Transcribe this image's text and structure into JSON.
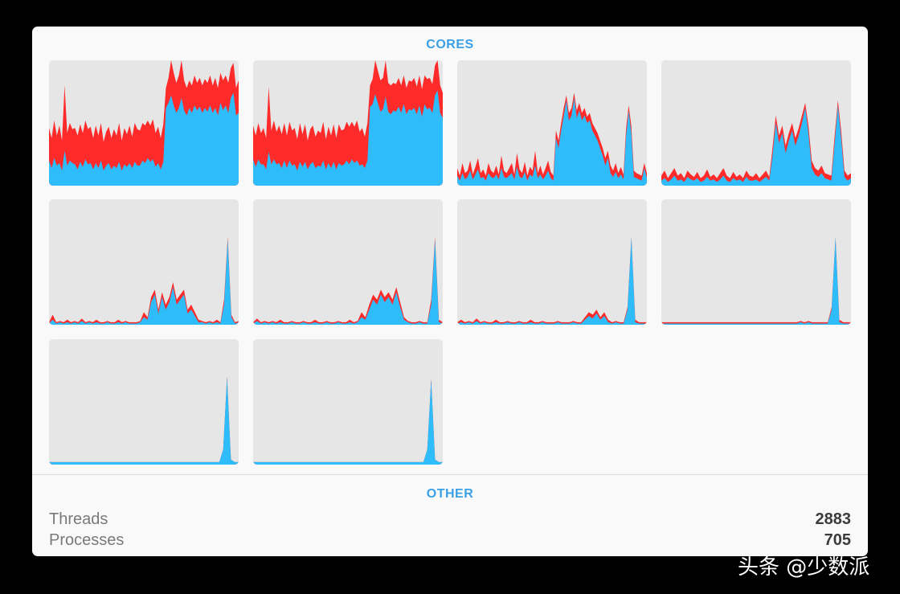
{
  "cores": {
    "title": "CORES",
    "colors": {
      "system": "#ff2a2a",
      "user": "#2ebcfb",
      "background": "#e6e6e6"
    },
    "graphs": [
      {
        "name": "core-1",
        "total": [
          0.46,
          0.38,
          0.52,
          0.4,
          0.48,
          0.36,
          0.8,
          0.42,
          0.5,
          0.45,
          0.46,
          0.4,
          0.49,
          0.42,
          0.52,
          0.45,
          0.47,
          0.38,
          0.48,
          0.4,
          0.5,
          0.35,
          0.43,
          0.47,
          0.38,
          0.45,
          0.4,
          0.5,
          0.36,
          0.46,
          0.41,
          0.48,
          0.39,
          0.5,
          0.45,
          0.44,
          0.5,
          0.48,
          0.52,
          0.48,
          0.53,
          0.42,
          0.47,
          0.38,
          0.49,
          0.78,
          0.86,
          1.0,
          0.9,
          0.82,
          0.88,
          1.0,
          0.84,
          0.78,
          0.84,
          0.8,
          0.88,
          0.82,
          0.86,
          0.8,
          0.85,
          0.82,
          0.88,
          0.8,
          0.86,
          0.78,
          0.9,
          0.84,
          0.88,
          0.82,
          0.94,
          0.98,
          0.78,
          0.84
        ],
        "user": [
          0.2,
          0.14,
          0.22,
          0.16,
          0.18,
          0.12,
          0.28,
          0.16,
          0.2,
          0.18,
          0.17,
          0.13,
          0.19,
          0.15,
          0.21,
          0.17,
          0.18,
          0.13,
          0.18,
          0.14,
          0.2,
          0.12,
          0.16,
          0.18,
          0.13,
          0.16,
          0.14,
          0.19,
          0.12,
          0.17,
          0.15,
          0.18,
          0.14,
          0.19,
          0.16,
          0.16,
          0.2,
          0.18,
          0.22,
          0.19,
          0.21,
          0.15,
          0.18,
          0.13,
          0.19,
          0.62,
          0.66,
          0.72,
          0.64,
          0.58,
          0.62,
          0.7,
          0.6,
          0.56,
          0.62,
          0.58,
          0.64,
          0.6,
          0.63,
          0.58,
          0.62,
          0.59,
          0.64,
          0.58,
          0.62,
          0.56,
          0.66,
          0.6,
          0.64,
          0.58,
          0.7,
          0.74,
          0.56,
          0.58
        ]
      },
      {
        "name": "core-2",
        "total": [
          0.48,
          0.4,
          0.5,
          0.42,
          0.46,
          0.38,
          0.79,
          0.44,
          0.52,
          0.43,
          0.48,
          0.41,
          0.5,
          0.4,
          0.51,
          0.44,
          0.46,
          0.37,
          0.5,
          0.41,
          0.49,
          0.36,
          0.45,
          0.48,
          0.39,
          0.44,
          0.42,
          0.51,
          0.37,
          0.47,
          0.4,
          0.49,
          0.38,
          0.49,
          0.44,
          0.45,
          0.51,
          0.47,
          0.51,
          0.47,
          0.52,
          0.43,
          0.46,
          0.39,
          0.5,
          0.8,
          0.85,
          1.0,
          0.92,
          0.84,
          0.86,
          1.0,
          0.82,
          0.8,
          0.82,
          0.81,
          0.86,
          0.8,
          0.88,
          0.78,
          0.84,
          0.83,
          0.86,
          0.79,
          0.88,
          0.77,
          0.88,
          0.85,
          0.86,
          0.81,
          0.96,
          1.0,
          0.8,
          0.74
        ],
        "user": [
          0.21,
          0.15,
          0.21,
          0.17,
          0.17,
          0.13,
          0.27,
          0.17,
          0.21,
          0.17,
          0.18,
          0.14,
          0.2,
          0.14,
          0.2,
          0.16,
          0.17,
          0.12,
          0.19,
          0.15,
          0.19,
          0.13,
          0.17,
          0.19,
          0.14,
          0.16,
          0.15,
          0.2,
          0.13,
          0.18,
          0.14,
          0.19,
          0.13,
          0.18,
          0.16,
          0.17,
          0.2,
          0.17,
          0.21,
          0.18,
          0.2,
          0.16,
          0.17,
          0.14,
          0.2,
          0.63,
          0.65,
          0.73,
          0.66,
          0.59,
          0.61,
          0.71,
          0.59,
          0.57,
          0.6,
          0.59,
          0.63,
          0.58,
          0.65,
          0.57,
          0.61,
          0.6,
          0.62,
          0.57,
          0.64,
          0.55,
          0.65,
          0.61,
          0.62,
          0.58,
          0.72,
          0.76,
          0.58,
          0.54
        ]
      },
      {
        "name": "core-3",
        "total": [
          0.14,
          0.08,
          0.18,
          0.1,
          0.12,
          0.2,
          0.09,
          0.15,
          0.22,
          0.1,
          0.13,
          0.08,
          0.18,
          0.12,
          0.1,
          0.16,
          0.09,
          0.24,
          0.12,
          0.1,
          0.14,
          0.18,
          0.09,
          0.26,
          0.13,
          0.1,
          0.19,
          0.08,
          0.15,
          0.12,
          0.28,
          0.1,
          0.16,
          0.09,
          0.14,
          0.2,
          0.11,
          0.08,
          0.44,
          0.36,
          0.5,
          0.62,
          0.72,
          0.58,
          0.62,
          0.74,
          0.6,
          0.66,
          0.58,
          0.62,
          0.55,
          0.58,
          0.5,
          0.46,
          0.42,
          0.36,
          0.3,
          0.22,
          0.28,
          0.16,
          0.12,
          0.18,
          0.1,
          0.15,
          0.09,
          0.46,
          0.64,
          0.48,
          0.12,
          0.1,
          0.09,
          0.08,
          0.18,
          0.1
        ],
        "user": [
          0.08,
          0.04,
          0.1,
          0.05,
          0.07,
          0.12,
          0.05,
          0.09,
          0.13,
          0.06,
          0.07,
          0.04,
          0.1,
          0.07,
          0.06,
          0.09,
          0.05,
          0.14,
          0.07,
          0.06,
          0.08,
          0.1,
          0.05,
          0.15,
          0.07,
          0.06,
          0.11,
          0.04,
          0.09,
          0.07,
          0.16,
          0.06,
          0.09,
          0.05,
          0.08,
          0.12,
          0.06,
          0.04,
          0.38,
          0.3,
          0.44,
          0.56,
          0.68,
          0.52,
          0.56,
          0.7,
          0.54,
          0.6,
          0.52,
          0.56,
          0.5,
          0.52,
          0.44,
          0.4,
          0.36,
          0.3,
          0.24,
          0.16,
          0.22,
          0.1,
          0.07,
          0.11,
          0.06,
          0.09,
          0.05,
          0.4,
          0.6,
          0.42,
          0.07,
          0.06,
          0.05,
          0.04,
          0.14,
          0.06
        ]
      },
      {
        "name": "core-4",
        "total": [
          0.08,
          0.12,
          0.06,
          0.1,
          0.14,
          0.08,
          0.1,
          0.06,
          0.12,
          0.09,
          0.07,
          0.11,
          0.06,
          0.08,
          0.13,
          0.07,
          0.09,
          0.06,
          0.1,
          0.14,
          0.08,
          0.06,
          0.11,
          0.07,
          0.09,
          0.06,
          0.12,
          0.08,
          0.07,
          0.1,
          0.06,
          0.09,
          0.12,
          0.07,
          0.3,
          0.56,
          0.4,
          0.48,
          0.32,
          0.42,
          0.5,
          0.38,
          0.46,
          0.56,
          0.66,
          0.48,
          0.2,
          0.14,
          0.12,
          0.16,
          0.1,
          0.09,
          0.08,
          0.4,
          0.68,
          0.44,
          0.12,
          0.08,
          0.1
        ],
        "user": [
          0.04,
          0.06,
          0.03,
          0.05,
          0.08,
          0.04,
          0.05,
          0.03,
          0.07,
          0.05,
          0.04,
          0.06,
          0.03,
          0.04,
          0.07,
          0.04,
          0.05,
          0.03,
          0.05,
          0.08,
          0.04,
          0.03,
          0.06,
          0.04,
          0.05,
          0.03,
          0.07,
          0.04,
          0.04,
          0.05,
          0.03,
          0.05,
          0.07,
          0.04,
          0.24,
          0.5,
          0.34,
          0.42,
          0.26,
          0.36,
          0.44,
          0.32,
          0.4,
          0.5,
          0.62,
          0.42,
          0.14,
          0.09,
          0.07,
          0.1,
          0.06,
          0.05,
          0.04,
          0.34,
          0.64,
          0.38,
          0.07,
          0.04,
          0.06
        ]
      },
      {
        "name": "core-5",
        "total": [
          0.02,
          0.08,
          0.02,
          0.03,
          0.02,
          0.04,
          0.02,
          0.03,
          0.02,
          0.05,
          0.02,
          0.03,
          0.02,
          0.04,
          0.02,
          0.02,
          0.03,
          0.02,
          0.02,
          0.04,
          0.02,
          0.03,
          0.02,
          0.02,
          0.02,
          0.03,
          0.1,
          0.06,
          0.22,
          0.28,
          0.12,
          0.26,
          0.16,
          0.22,
          0.34,
          0.2,
          0.24,
          0.28,
          0.12,
          0.16,
          0.1,
          0.04,
          0.03,
          0.02,
          0.03,
          0.02,
          0.04,
          0.02,
          0.2,
          0.7,
          0.08,
          0.02,
          0.03
        ],
        "user": [
          0.01,
          0.04,
          0.01,
          0.02,
          0.01,
          0.02,
          0.01,
          0.02,
          0.01,
          0.03,
          0.01,
          0.02,
          0.01,
          0.02,
          0.01,
          0.01,
          0.02,
          0.01,
          0.01,
          0.02,
          0.01,
          0.02,
          0.01,
          0.01,
          0.01,
          0.02,
          0.06,
          0.04,
          0.18,
          0.24,
          0.09,
          0.22,
          0.12,
          0.18,
          0.3,
          0.16,
          0.2,
          0.24,
          0.09,
          0.12,
          0.07,
          0.02,
          0.02,
          0.01,
          0.02,
          0.01,
          0.02,
          0.01,
          0.16,
          0.68,
          0.06,
          0.01,
          0.02
        ]
      },
      {
        "name": "core-6",
        "total": [
          0.02,
          0.05,
          0.02,
          0.03,
          0.02,
          0.03,
          0.02,
          0.04,
          0.02,
          0.02,
          0.03,
          0.02,
          0.02,
          0.03,
          0.02,
          0.02,
          0.04,
          0.02,
          0.02,
          0.03,
          0.02,
          0.02,
          0.03,
          0.02,
          0.02,
          0.04,
          0.02,
          0.03,
          0.1,
          0.06,
          0.16,
          0.24,
          0.2,
          0.28,
          0.22,
          0.26,
          0.2,
          0.3,
          0.18,
          0.06,
          0.03,
          0.02,
          0.02,
          0.03,
          0.02,
          0.02,
          0.2,
          0.7,
          0.04,
          0.02
        ],
        "user": [
          0.01,
          0.03,
          0.01,
          0.02,
          0.01,
          0.02,
          0.01,
          0.02,
          0.01,
          0.01,
          0.02,
          0.01,
          0.01,
          0.02,
          0.01,
          0.01,
          0.02,
          0.01,
          0.01,
          0.02,
          0.01,
          0.01,
          0.02,
          0.01,
          0.01,
          0.02,
          0.01,
          0.02,
          0.06,
          0.04,
          0.12,
          0.2,
          0.16,
          0.24,
          0.18,
          0.22,
          0.16,
          0.26,
          0.14,
          0.04,
          0.02,
          0.01,
          0.01,
          0.02,
          0.01,
          0.01,
          0.16,
          0.68,
          0.02,
          0.01
        ]
      },
      {
        "name": "core-7",
        "total": [
          0.02,
          0.04,
          0.02,
          0.03,
          0.02,
          0.05,
          0.02,
          0.03,
          0.02,
          0.02,
          0.04,
          0.02,
          0.02,
          0.03,
          0.02,
          0.02,
          0.03,
          0.02,
          0.02,
          0.04,
          0.02,
          0.02,
          0.03,
          0.02,
          0.02,
          0.02,
          0.03,
          0.02,
          0.02,
          0.02,
          0.03,
          0.02,
          0.02,
          0.06,
          0.1,
          0.08,
          0.12,
          0.06,
          0.1,
          0.04,
          0.02,
          0.03,
          0.02,
          0.02,
          0.14,
          0.7,
          0.04,
          0.02,
          0.02,
          0.02
        ],
        "user": [
          0.01,
          0.02,
          0.01,
          0.02,
          0.01,
          0.03,
          0.01,
          0.02,
          0.01,
          0.01,
          0.02,
          0.01,
          0.01,
          0.02,
          0.01,
          0.01,
          0.02,
          0.01,
          0.01,
          0.02,
          0.01,
          0.01,
          0.02,
          0.01,
          0.01,
          0.01,
          0.02,
          0.01,
          0.01,
          0.01,
          0.02,
          0.01,
          0.01,
          0.04,
          0.07,
          0.05,
          0.09,
          0.04,
          0.07,
          0.02,
          0.01,
          0.02,
          0.01,
          0.01,
          0.12,
          0.7,
          0.02,
          0.01,
          0.01,
          0.01
        ]
      },
      {
        "name": "core-8",
        "total": [
          0.02,
          0.02,
          0.02,
          0.02,
          0.02,
          0.02,
          0.02,
          0.02,
          0.02,
          0.02,
          0.02,
          0.02,
          0.02,
          0.02,
          0.02,
          0.02,
          0.02,
          0.02,
          0.02,
          0.02,
          0.02,
          0.02,
          0.02,
          0.02,
          0.02,
          0.02,
          0.02,
          0.02,
          0.02,
          0.02,
          0.02,
          0.02,
          0.02,
          0.02,
          0.02,
          0.02,
          0.03,
          0.02,
          0.03,
          0.02,
          0.02,
          0.02,
          0.02,
          0.02,
          0.14,
          0.7,
          0.04,
          0.02,
          0.02,
          0.02
        ],
        "user": [
          0.01,
          0.01,
          0.01,
          0.01,
          0.01,
          0.01,
          0.01,
          0.01,
          0.01,
          0.01,
          0.01,
          0.01,
          0.01,
          0.01,
          0.01,
          0.01,
          0.01,
          0.01,
          0.01,
          0.01,
          0.01,
          0.01,
          0.01,
          0.01,
          0.01,
          0.01,
          0.01,
          0.01,
          0.01,
          0.01,
          0.01,
          0.01,
          0.01,
          0.01,
          0.01,
          0.01,
          0.02,
          0.01,
          0.02,
          0.01,
          0.01,
          0.01,
          0.01,
          0.01,
          0.12,
          0.7,
          0.02,
          0.01,
          0.01,
          0.01
        ]
      },
      {
        "name": "core-9",
        "total": [
          0.02,
          0.02,
          0.02,
          0.02,
          0.02,
          0.02,
          0.02,
          0.02,
          0.02,
          0.02,
          0.02,
          0.02,
          0.02,
          0.02,
          0.02,
          0.02,
          0.02,
          0.02,
          0.02,
          0.02,
          0.02,
          0.02,
          0.02,
          0.02,
          0.02,
          0.02,
          0.02,
          0.02,
          0.02,
          0.02,
          0.02,
          0.02,
          0.02,
          0.02,
          0.02,
          0.02,
          0.02,
          0.02,
          0.02,
          0.02,
          0.02,
          0.02,
          0.02,
          0.02,
          0.02,
          0.12,
          0.7,
          0.04,
          0.02,
          0.02
        ],
        "user": [
          0.02,
          0.02,
          0.02,
          0.02,
          0.02,
          0.02,
          0.02,
          0.02,
          0.02,
          0.02,
          0.02,
          0.02,
          0.02,
          0.02,
          0.02,
          0.02,
          0.02,
          0.02,
          0.02,
          0.02,
          0.02,
          0.02,
          0.02,
          0.02,
          0.02,
          0.02,
          0.02,
          0.02,
          0.02,
          0.02,
          0.02,
          0.02,
          0.02,
          0.02,
          0.02,
          0.02,
          0.02,
          0.02,
          0.02,
          0.02,
          0.02,
          0.02,
          0.02,
          0.02,
          0.02,
          0.12,
          0.7,
          0.04,
          0.02,
          0.02
        ]
      },
      {
        "name": "core-10",
        "total": [
          0.02,
          0.02,
          0.02,
          0.02,
          0.02,
          0.02,
          0.02,
          0.02,
          0.02,
          0.02,
          0.02,
          0.02,
          0.02,
          0.02,
          0.02,
          0.02,
          0.02,
          0.02,
          0.02,
          0.02,
          0.02,
          0.02,
          0.02,
          0.02,
          0.02,
          0.02,
          0.02,
          0.02,
          0.02,
          0.02,
          0.02,
          0.02,
          0.02,
          0.02,
          0.02,
          0.02,
          0.02,
          0.02,
          0.02,
          0.02,
          0.02,
          0.02,
          0.02,
          0.02,
          0.02,
          0.12,
          0.68,
          0.04,
          0.02,
          0.02
        ],
        "user": [
          0.02,
          0.02,
          0.02,
          0.02,
          0.02,
          0.02,
          0.02,
          0.02,
          0.02,
          0.02,
          0.02,
          0.02,
          0.02,
          0.02,
          0.02,
          0.02,
          0.02,
          0.02,
          0.02,
          0.02,
          0.02,
          0.02,
          0.02,
          0.02,
          0.02,
          0.02,
          0.02,
          0.02,
          0.02,
          0.02,
          0.02,
          0.02,
          0.02,
          0.02,
          0.02,
          0.02,
          0.02,
          0.02,
          0.02,
          0.02,
          0.02,
          0.02,
          0.02,
          0.02,
          0.02,
          0.12,
          0.68,
          0.04,
          0.02,
          0.02
        ]
      }
    ]
  },
  "other": {
    "title": "OTHER",
    "threads_label": "Threads",
    "threads_value": "2883",
    "processes_label": "Processes",
    "processes_value": "705"
  },
  "watermark": "头条 @少数派"
}
